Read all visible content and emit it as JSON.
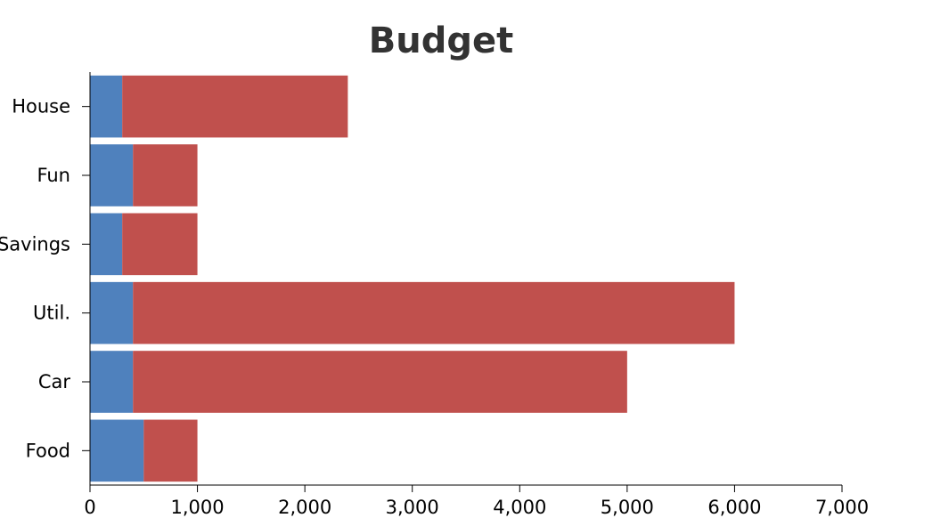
{
  "chart_data": {
    "type": "bar",
    "orientation": "horizontal",
    "stacked": true,
    "title": "Budget",
    "xlabel": "",
    "ylabel": "",
    "categories": [
      "House",
      "Fun",
      "Savings",
      "Util.",
      "Car",
      "Food"
    ],
    "series": [
      {
        "color": "#4f81bd",
        "values": [
          300,
          400,
          300,
          400,
          400,
          500
        ]
      },
      {
        "color": "#c0504d",
        "values": [
          2100,
          600,
          700,
          5600,
          4600,
          500
        ]
      }
    ],
    "xlim": [
      0,
      7000
    ],
    "x_ticks": [
      0,
      1000,
      2000,
      3000,
      4000,
      5000,
      6000,
      7000
    ],
    "x_tick_labels": [
      "0",
      "1,000",
      "2,000",
      "3,000",
      "4,000",
      "5,000",
      "6,000",
      "7,000"
    ],
    "grid": false,
    "legend": "none"
  }
}
